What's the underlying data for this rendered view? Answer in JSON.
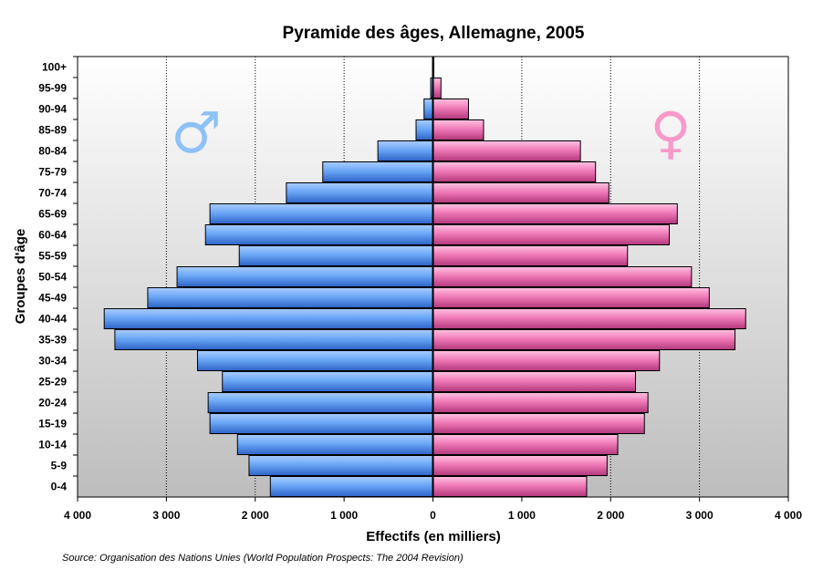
{
  "chart_data": {
    "type": "bar",
    "orientation": "horizontal",
    "title": "Pyramide des âges, Allemagne, 2005",
    "xlabel": "Effectifs (en milliers)",
    "ylabel": "Groupes d'âge",
    "xlim": [
      -4000,
      4000
    ],
    "xticks": [
      -4000,
      -3000,
      -2000,
      -1000,
      0,
      1000,
      2000,
      3000,
      4000
    ],
    "xtick_labels": [
      "4 000",
      "3 000",
      "2 000",
      "1 000",
      "0",
      "1 000",
      "2 000",
      "3 000",
      "4 000"
    ],
    "grid": "vertical dotted",
    "categories": [
      "0-4",
      "5-9",
      "10-14",
      "15-19",
      "20-24",
      "25-29",
      "30-34",
      "35-39",
      "40-44",
      "45-49",
      "50-54",
      "55-59",
      "60-64",
      "65-69",
      "70-74",
      "75-79",
      "80-84",
      "85-89",
      "90-94",
      "95-99",
      "100+"
    ],
    "series": [
      {
        "name": "Hommes",
        "symbol": "♂",
        "color": "#5b9bef",
        "values": [
          1830,
          2070,
          2200,
          2510,
          2530,
          2370,
          2650,
          3580,
          3700,
          3210,
          2880,
          2180,
          2560,
          2510,
          1650,
          1240,
          620,
          190,
          100,
          25,
          5
        ]
      },
      {
        "name": "Femmes",
        "symbol": "♀",
        "color": "#f27ab8",
        "values": [
          1730,
          1960,
          2080,
          2380,
          2420,
          2280,
          2550,
          3400,
          3520,
          3110,
          2910,
          2190,
          2660,
          2750,
          1980,
          1830,
          1660,
          570,
          400,
          90,
          10
        ]
      }
    ],
    "source": "Source: Organisation des Nations Unies (World Population Prospects: The 2004 Revision)"
  }
}
